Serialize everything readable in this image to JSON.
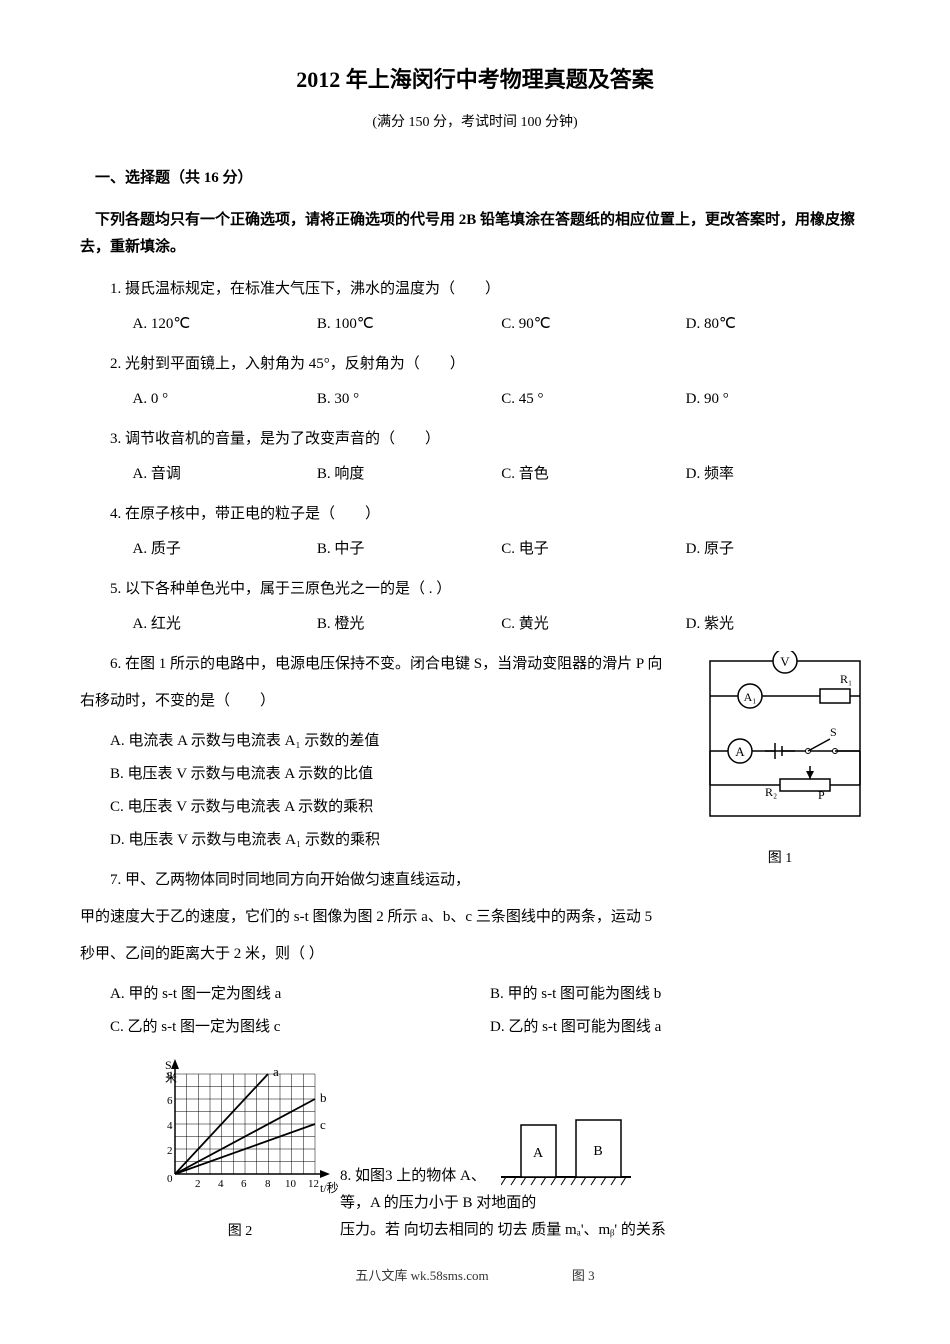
{
  "title": "2012 年上海闵行中考物理真题及答案",
  "subtitle": "(满分 150 分，考试时间 100 分钟)",
  "section1_header": "一、选择题（共 16 分）",
  "instruction": "下列各题均只有一个正确选项，请将正确选项的代号用 2B 铅笔填涂在答题纸的相应位置上，更改答案时，用橡皮擦去，重新填涂。",
  "questions": [
    {
      "num": "1.",
      "text": "摄氏温标规定，在标准大气压下，沸水的温度为（　　）",
      "options": [
        "A.  120℃",
        "B.  100℃",
        "C.  90℃",
        "D.  80℃"
      ]
    },
    {
      "num": "2.",
      "text": "光射到平面镜上，入射角为 45°，反射角为（　　）",
      "options": [
        "A.  0 °",
        "B.  30 °",
        "C.  45 °",
        "D.  90 °"
      ]
    },
    {
      "num": "3.",
      "text": "调节收音机的音量，是为了改变声音的（　　）",
      "options": [
        "A.  音调",
        "B.  响度",
        "C.  音色",
        "D.  频率"
      ]
    },
    {
      "num": "4.",
      "text": "在原子核中，带正电的粒子是（　　）",
      "options": [
        "A.  质子",
        "B.  中子",
        "C.  电子",
        "D.  原子"
      ]
    },
    {
      "num": "5.",
      "text": "以下各种单色光中，属于三原色光之一的是（  .  ）",
      "options": [
        "A.  红光",
        "B.  橙光",
        "C.  黄光",
        "D.  紫光"
      ]
    }
  ],
  "q6": {
    "num": "6.",
    "text": "在图 1 所示的电路中，电源电压保持不变。闭合电键 S，当滑动变阻器的滑片 P 向",
    "cont": "右移动时，不变的是（　　）",
    "opts": [
      "A.  电流表 A 示数与电流表 A₁ 示数的差值",
      "B.  电压表 V 示数与电流表 A  示数的比值",
      "C.  电压表 V 示数与电流表 A  示数的乘积",
      "D.  电压表 V 示数与电流表 A₁  示数的乘积"
    ],
    "fig_label": "图 1",
    "circuit_labels": {
      "V": "V",
      "A1": "A₁",
      "A": "A",
      "R1": "R₁",
      "R2": "R₂",
      "S": "S",
      "P": "P"
    }
  },
  "q7": {
    "num": "7.",
    "text": "甲、乙两物体同时同地同方向开始做匀速直线运动，",
    "cont1": "甲的速度大于乙的速度，它们的 s-t 图像为图 2 所示 a、b、c 三条图线中的两条，运动 5",
    "cont2": "秒甲、乙间的距离大于 2 米，则（  ）",
    "opts": [
      [
        "A.  甲的 s-t 图一定为图线 a",
        "B.  甲的 s-t 图可能为图线 b"
      ],
      [
        "C.  乙的 s-t 图一定为图线 c",
        "D.  乙的 s-t 图可能为图线 a"
      ]
    ]
  },
  "q8": {
    "num": "8.",
    "text_before_graph": "如图3",
    "text_parts": {
      "part1": "上的物体 A、",
      "part2": "等，A",
      "part3": "的压力小于 B 对地面的",
      "part4": "压力。若",
      "part5": "向切去相同的",
      "part6": "切去",
      "part7": "质量 mₐ'、mᵦ' 的关系"
    },
    "blocks": {
      "A": "A",
      "B": "B"
    },
    "fig3_label": "图 3"
  },
  "graph": {
    "ylabel": "S/米",
    "xlabel": "t/秒",
    "fig_label": "图 2",
    "xticks": [
      0,
      2,
      4,
      6,
      8,
      10,
      12
    ],
    "yticks": [
      0,
      2,
      4,
      6,
      8
    ],
    "lines": {
      "a": {
        "label": "a",
        "points": [
          [
            0,
            0
          ],
          [
            8,
            8
          ]
        ]
      },
      "b": {
        "label": "b",
        "points": [
          [
            0,
            0
          ],
          [
            12,
            6
          ]
        ]
      },
      "c": {
        "label": "c",
        "points": [
          [
            0,
            0
          ],
          [
            12,
            4
          ]
        ]
      }
    },
    "gridColor": "#000",
    "lineColor": "#000",
    "bgColor": "#ffffff"
  },
  "footer": "五八文库 wk.58sms.com"
}
